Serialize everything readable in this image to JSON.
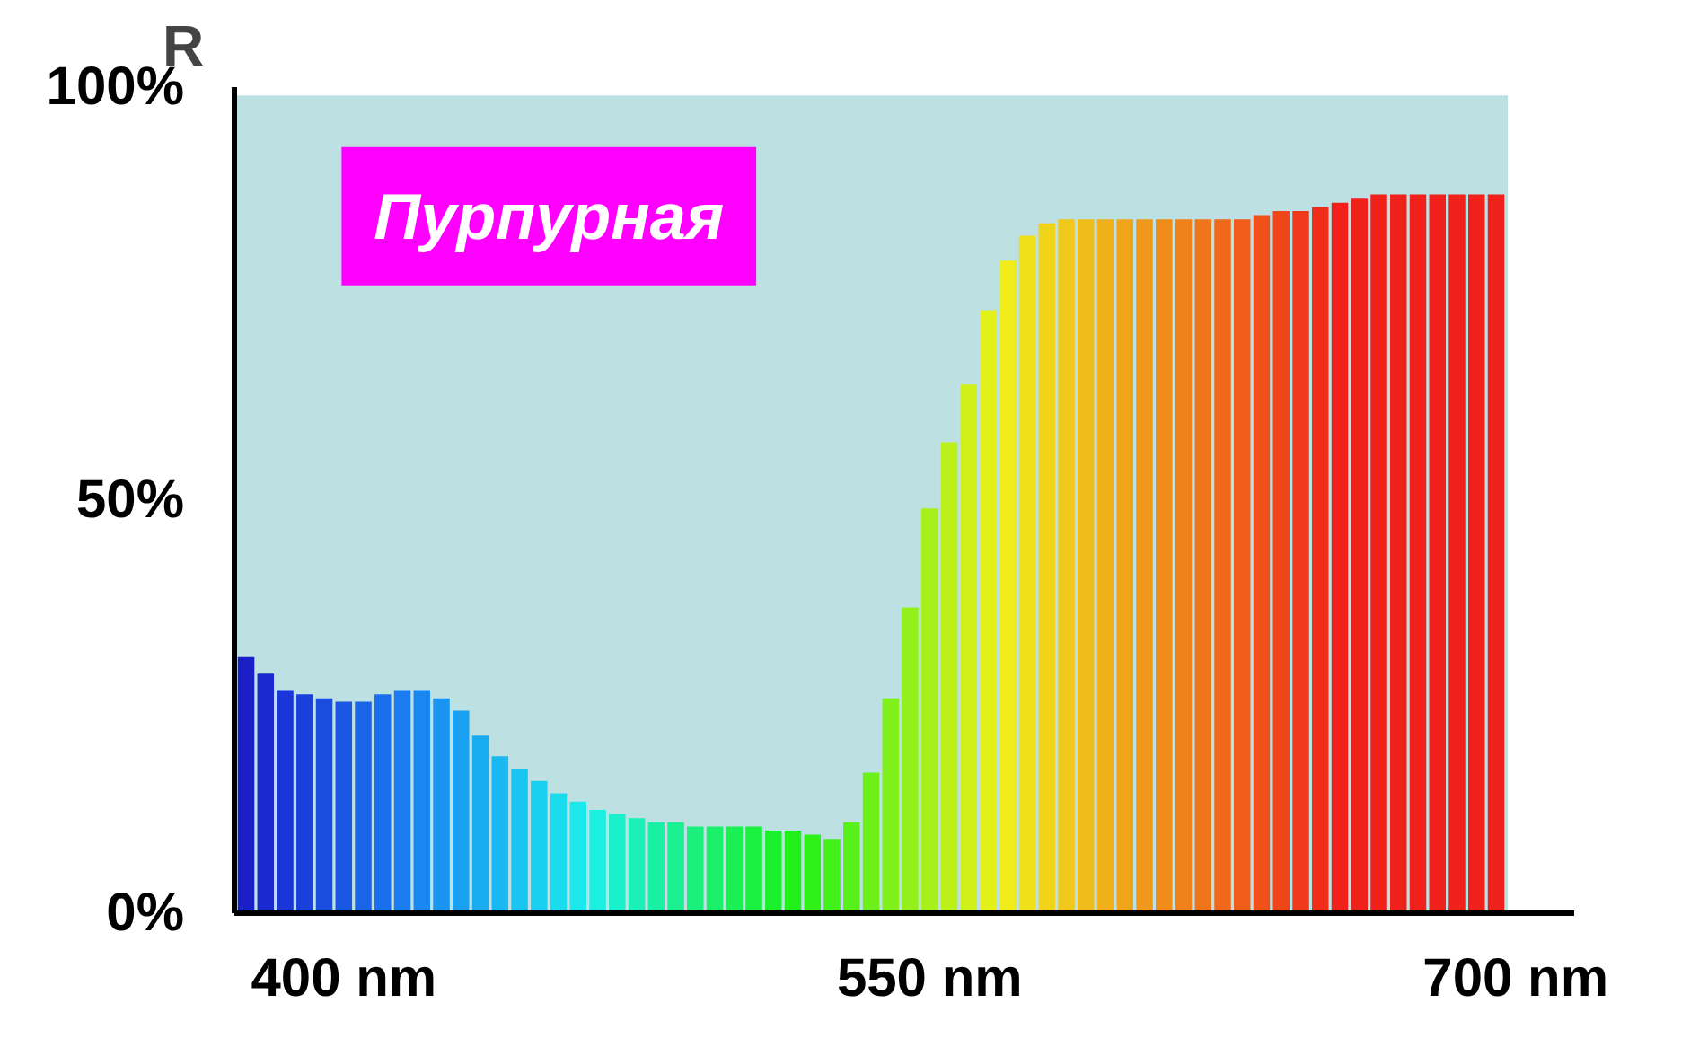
{
  "chart_data": {
    "type": "bar",
    "ylabel": "R",
    "annotations": [
      "Пурпурная"
    ],
    "x": [
      375,
      380,
      385,
      390,
      395,
      400,
      405,
      410,
      415,
      420,
      425,
      430,
      435,
      440,
      445,
      450,
      455,
      460,
      465,
      470,
      475,
      480,
      485,
      490,
      495,
      500,
      505,
      510,
      515,
      520,
      525,
      530,
      535,
      540,
      545,
      550,
      555,
      560,
      565,
      570,
      575,
      580,
      585,
      590,
      595,
      600,
      605,
      610,
      615,
      620,
      625,
      630,
      635,
      640,
      645,
      650,
      655,
      660,
      665,
      670,
      675,
      680,
      685,
      690,
      695
    ],
    "values": [
      31,
      29,
      27,
      26.5,
      26,
      25.6,
      25.6,
      26.5,
      27,
      27,
      26,
      24.5,
      21.5,
      19,
      17.5,
      16,
      14.5,
      13.5,
      12.5,
      12,
      11.5,
      11,
      11,
      10.5,
      10.5,
      10.5,
      10.5,
      10,
      10,
      9.5,
      9,
      11,
      17,
      26,
      37,
      49,
      57,
      64,
      73,
      79,
      82,
      83.5,
      84,
      84,
      84,
      84,
      84,
      84,
      84,
      84,
      84,
      84,
      84.5,
      85,
      85,
      85.5,
      86,
      86.5,
      87,
      87,
      87,
      87,
      87,
      87,
      87
    ],
    "colors": [
      "#1a1fc8",
      "#1a2ad0",
      "#1a35d8",
      "#1a40dc",
      "#1a4ce0",
      "#1a58e4",
      "#1a64e8",
      "#1a70ec",
      "#1a7cef",
      "#1a88f0",
      "#1a94f0",
      "#1aa0f0",
      "#1aacf0",
      "#1ab8f0",
      "#1ac4f0",
      "#1ad0f0",
      "#1adcee",
      "#1ae8ea",
      "#1af0e0",
      "#1af0cc",
      "#1af0b8",
      "#1af0a4",
      "#1af090",
      "#1af07c",
      "#1af068",
      "#1af054",
      "#1af040",
      "#1af02c",
      "#20f01a",
      "#30f01a",
      "#44f01a",
      "#58f01a",
      "#6cf01a",
      "#80f01a",
      "#94f01a",
      "#a8f01a",
      "#bcf01a",
      "#d0f01a",
      "#e4f01a",
      "#f0ec1a",
      "#f0e01a",
      "#f0d41a",
      "#f0c81a",
      "#f0bc1a",
      "#f0b01a",
      "#f0a41a",
      "#f0981a",
      "#f08c1a",
      "#f0801a",
      "#f0741a",
      "#f0681a",
      "#f05c1a",
      "#f0501a",
      "#f0441a",
      "#f0381a",
      "#f02c1a",
      "#f0201a",
      "#f0201a",
      "#f0201a",
      "#f0201a",
      "#f0201a",
      "#f0201a",
      "#f0201a",
      "#f0201a",
      "#f0201a"
    ],
    "xlim": [
      372,
      715
    ],
    "ylim": [
      0,
      100
    ],
    "xticks": [
      {
        "value": 400,
        "label": "400 nm"
      },
      {
        "value": 550,
        "label": "550 nm"
      },
      {
        "value": 700,
        "label": "700 nm"
      }
    ],
    "yticks": [
      {
        "value": 0,
        "label": "0%"
      },
      {
        "value": 50,
        "label": "50%"
      },
      {
        "value": 100,
        "label": "100%"
      }
    ]
  }
}
